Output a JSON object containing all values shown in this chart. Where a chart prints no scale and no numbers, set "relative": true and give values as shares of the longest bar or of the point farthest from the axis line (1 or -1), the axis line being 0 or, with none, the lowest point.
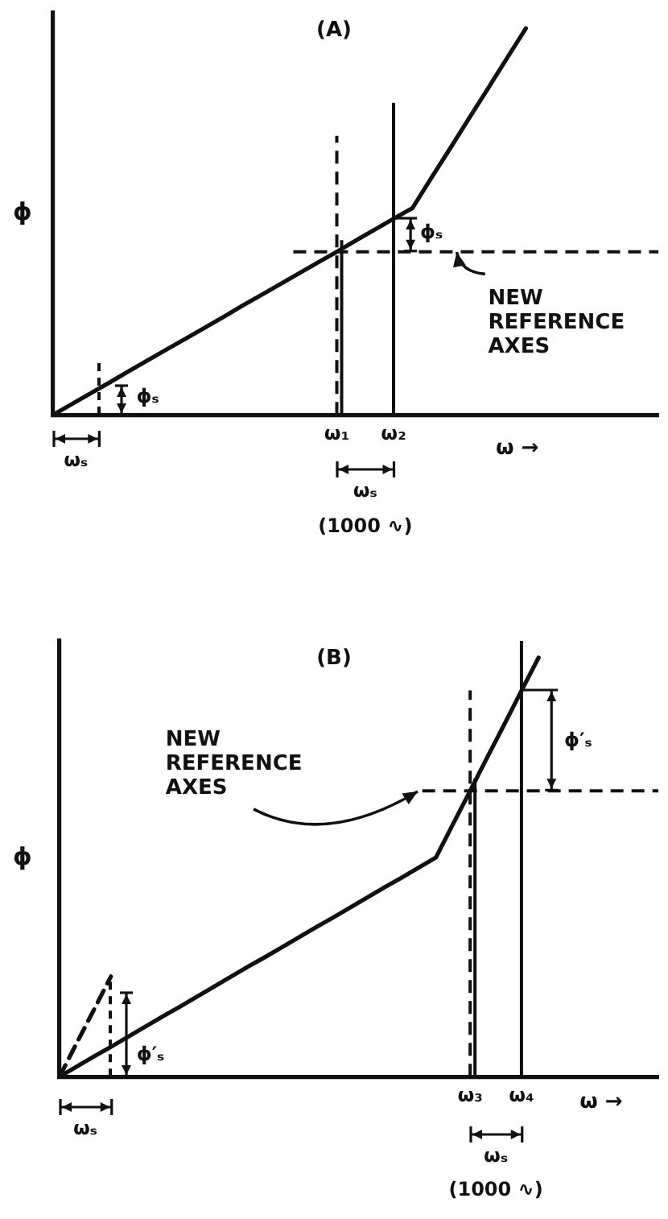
{
  "chart_data": [
    {
      "type": "line",
      "title": "(A)",
      "xlabel": "ω →",
      "ylabel": "ϕ",
      "relative": true,
      "tick_labels": "x",
      "categories": [
        null,
        null,
        null,
        null,
        null,
        null,
        null,
        null,
        null,
        null,
        null,
        null,
        null,
        null,
        null,
        "ω₁",
        null,
        null,
        "ω₂",
        null,
        null,
        null,
        null,
        null,
        null,
        null,
        null,
        null,
        null,
        null,
        null,
        null,
        null
      ],
      "series": [
        {
          "color": "#111111",
          "values": [
            0,
            0.028,
            0.056,
            0.084,
            0.113,
            0.141,
            0.169,
            0.197,
            0.225,
            0.253,
            0.282,
            0.31,
            0.338,
            0.366,
            0.394,
            0.422,
            0.451,
            0.479,
            0.507,
            0.535,
            0.613,
            0.69,
            0.768,
            0.845,
            0.923,
            1,
            null,
            null,
            null,
            null,
            null,
            null,
            null
          ]
        }
      ],
      "ref_lines": [
        {
          "axis": "x",
          "value": "ω₁",
          "line_style": "dashed"
        },
        {
          "axis": "x",
          "value": "ω₁"
        },
        {
          "axis": "x",
          "value": "ω₂"
        },
        {
          "axis": "y",
          "value": 0.422,
          "line_style": "dashed",
          "label": "NEW REFERENCE AXES"
        }
      ],
      "annotations": [
        "ωₛ",
        "ϕₛ",
        "ϕₛ",
        "ωₛ",
        "(1000 ∿)"
      ]
    },
    {
      "type": "line",
      "title": "(B)",
      "xlabel": "ω →",
      "ylabel": "ϕ",
      "relative": true,
      "tick_labels": "x",
      "categories": [
        null,
        null,
        null,
        null,
        null,
        null,
        null,
        null,
        null,
        null,
        null,
        null,
        null,
        null,
        null,
        null,
        null,
        null,
        null,
        null,
        null,
        null,
        null,
        null,
        "ω₃",
        null,
        null,
        "ω₄",
        null,
        null,
        null,
        null,
        null,
        null,
        null,
        null
      ],
      "series": [
        {
          "color": "#111111",
          "values": [
            0,
            0.024,
            0.048,
            0.071,
            0.095,
            0.119,
            0.143,
            0.166,
            0.19,
            0.214,
            0.238,
            0.262,
            0.285,
            0.309,
            0.333,
            0.357,
            0.38,
            0.404,
            0.428,
            0.452,
            0.475,
            0.499,
            0.523,
            0.603,
            0.682,
            0.762,
            0.841,
            0.921,
            1,
            null,
            null,
            null,
            null,
            null,
            null,
            null
          ]
        },
        {
          "color": "#111111",
          "line_style": "dashed",
          "values": [
            0,
            0.08,
            0.159,
            0.239,
            null,
            null,
            null,
            null,
            null,
            null,
            null,
            null,
            null,
            null,
            null,
            null,
            null,
            null,
            null,
            null,
            null,
            null,
            null,
            null,
            null,
            null,
            null,
            null,
            null,
            null,
            null,
            null,
            null,
            null,
            null,
            null
          ]
        }
      ],
      "ref_lines": [
        {
          "axis": "x",
          "value": "ω₃",
          "line_style": "dashed"
        },
        {
          "axis": "x",
          "value": "ω₃"
        },
        {
          "axis": "x",
          "value": "ω₄"
        },
        {
          "axis": "y",
          "value": 0.682,
          "line_style": "dashed",
          "label": "NEW REFERENCE AXES"
        }
      ],
      "annotations": [
        "ωₛ",
        "ϕ′ₛ",
        "ϕ′ₛ",
        "ωₛ",
        "(1000 ∿)"
      ]
    }
  ]
}
